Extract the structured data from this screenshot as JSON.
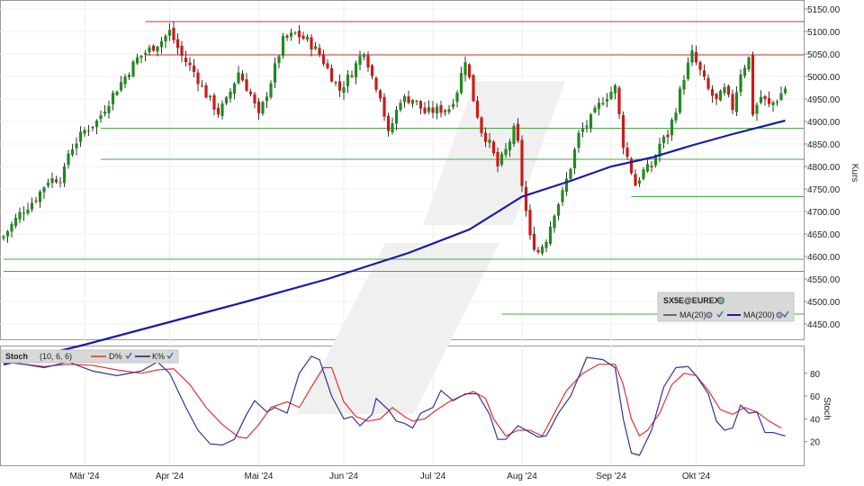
{
  "chart_data": [
    {
      "type": "candlestick",
      "instrument": "SX5E@EUREX",
      "y_unit_label": "Kurs",
      "ylim": [
        4420,
        5160
      ],
      "y_ticks": [
        "5150.00",
        "5100.00",
        "5050.00",
        "5000.00",
        "4950.00",
        "4900.00",
        "4850.00",
        "4800.00",
        "4750.00",
        "4700.00",
        "4650.00",
        "4600.00",
        "4550.00",
        "4500.00",
        "4450.00"
      ],
      "y_tick_values": [
        5150,
        5100,
        5050,
        5000,
        4950,
        4900,
        4850,
        4800,
        4750,
        4700,
        4650,
        4600,
        4550,
        4500,
        4450
      ],
      "x_ticks": [
        "Mär '24",
        "Apr '24",
        "Mai '24",
        "Jun '24",
        "Jul '24",
        "Aug '24",
        "Sep '24",
        "Okt '24"
      ],
      "x_tick_index": [
        20,
        41,
        63,
        84,
        106,
        128,
        150,
        171
      ],
      "legend": [
        {
          "label": "SX5E@EUREX",
          "type": "candle"
        },
        {
          "label": "MA(20)",
          "color": "#222222"
        },
        {
          "label": "MA(200)",
          "color": "#1a1aa8"
        }
      ],
      "horizontal_lines": [
        {
          "value": 5122,
          "color": "#cc3333",
          "from_index": 35
        },
        {
          "value": 5048,
          "color": "#cc3333",
          "from_index": 35
        },
        {
          "value": 4885,
          "color": "#44aa44",
          "from_index": 24
        },
        {
          "value": 4816,
          "color": "#44aa44",
          "from_index": 24
        },
        {
          "value": 4733,
          "color": "#44aa44",
          "from_index": 155
        },
        {
          "value": 4594,
          "color": "#44aa44",
          "from_index": 0
        },
        {
          "value": 4567,
          "color": "#44aa44",
          "from_index": 0
        },
        {
          "value": 4472,
          "color": "#44aa44",
          "from_index": 123
        }
      ],
      "ma200": [
        [
          0,
          4360
        ],
        [
          20,
          4404
        ],
        [
          40,
          4452
        ],
        [
          60,
          4500
        ],
        [
          80,
          4550
        ],
        [
          100,
          4608
        ],
        [
          115,
          4660
        ],
        [
          128,
          4733
        ],
        [
          140,
          4768
        ],
        [
          150,
          4800
        ],
        [
          160,
          4820
        ],
        [
          170,
          4847
        ],
        [
          180,
          4872
        ],
        [
          193,
          4902
        ]
      ],
      "close_path": [
        [
          0,
          4645
        ],
        [
          4,
          4695
        ],
        [
          8,
          4730
        ],
        [
          11,
          4770
        ],
        [
          14,
          4775
        ],
        [
          15,
          4790
        ],
        [
          16,
          4830
        ],
        [
          18,
          4856
        ],
        [
          20,
          4880
        ],
        [
          23,
          4900
        ],
        [
          25,
          4930
        ],
        [
          27,
          4960
        ],
        [
          30,
          5000
        ],
        [
          33,
          5040
        ],
        [
          36,
          5060
        ],
        [
          39,
          5080
        ],
        [
          41,
          5100
        ],
        [
          44,
          5045
        ],
        [
          47,
          5010
        ],
        [
          50,
          4960
        ],
        [
          53,
          4920
        ],
        [
          55,
          4945
        ],
        [
          58,
          5010
        ],
        [
          61,
          4960
        ],
        [
          63,
          4910
        ],
        [
          66,
          4990
        ],
        [
          69,
          5080
        ],
        [
          72,
          5095
        ],
        [
          75,
          5080
        ],
        [
          78,
          5050
        ],
        [
          81,
          5000
        ],
        [
          83,
          4970
        ],
        [
          86,
          5010
        ],
        [
          89,
          5060
        ],
        [
          91,
          5000
        ],
        [
          93,
          4960
        ],
        [
          95,
          4870
        ],
        [
          98,
          4950
        ],
        [
          101,
          4950
        ],
        [
          104,
          4920
        ],
        [
          107,
          4925
        ],
        [
          110,
          4930
        ],
        [
          112,
          4970
        ],
        [
          114,
          5040
        ],
        [
          116,
          4950
        ],
        [
          118,
          4880
        ],
        [
          120,
          4850
        ],
        [
          122,
          4800
        ],
        [
          124,
          4835
        ],
        [
          126,
          4880
        ],
        [
          127,
          4850
        ],
        [
          128,
          4760
        ],
        [
          130,
          4640
        ],
        [
          132,
          4610
        ],
        [
          134,
          4640
        ],
        [
          136,
          4700
        ],
        [
          138,
          4740
        ],
        [
          140,
          4800
        ],
        [
          142,
          4870
        ],
        [
          145,
          4905
        ],
        [
          148,
          4950
        ],
        [
          151,
          4975
        ],
        [
          153,
          4850
        ],
        [
          156,
          4760
        ],
        [
          158,
          4790
        ],
        [
          160,
          4800
        ],
        [
          162,
          4850
        ],
        [
          164,
          4870
        ],
        [
          166,
          4930
        ],
        [
          168,
          5000
        ],
        [
          170,
          5050
        ],
        [
          172,
          5010
        ],
        [
          174,
          4970
        ],
        [
          176,
          4945
        ],
        [
          178,
          4970
        ],
        [
          180,
          4930
        ],
        [
          182,
          5010
        ],
        [
          184,
          5040
        ],
        [
          185,
          4920
        ],
        [
          187,
          4955
        ],
        [
          189,
          4935
        ],
        [
          191,
          4950
        ],
        [
          193,
          4975
        ]
      ]
    },
    {
      "type": "line",
      "title": "Stoch",
      "params": "(10, 6, 6)",
      "y_unit_label": "Stoch",
      "ylim": [
        0,
        100
      ],
      "y_ticks": [
        "80",
        "60",
        "40",
        "20"
      ],
      "y_tick_values": [
        80,
        60,
        40,
        20
      ],
      "series": [
        {
          "name": "D%",
          "color": "#dd3333",
          "points": [
            [
              0,
              90
            ],
            [
              5,
              88
            ],
            [
              10,
              86
            ],
            [
              16,
              88
            ],
            [
              22,
              87
            ],
            [
              28,
              83
            ],
            [
              34,
              80
            ],
            [
              38,
              83
            ],
            [
              42,
              84
            ],
            [
              46,
              70
            ],
            [
              50,
              50
            ],
            [
              54,
              35
            ],
            [
              58,
              24
            ],
            [
              60,
              23
            ],
            [
              63,
              35
            ],
            [
              66,
              50
            ],
            [
              70,
              55
            ],
            [
              73,
              50
            ],
            [
              76,
              68
            ],
            [
              79,
              85
            ],
            [
              81,
              85
            ],
            [
              84,
              55
            ],
            [
              87,
              42
            ],
            [
              90,
              38
            ],
            [
              93,
              40
            ],
            [
              96,
              50
            ],
            [
              99,
              42
            ],
            [
              101,
              38
            ],
            [
              104,
              40
            ],
            [
              107,
              48
            ],
            [
              110,
              55
            ],
            [
              113,
              60
            ],
            [
              116,
              64
            ],
            [
              119,
              58
            ],
            [
              121,
              40
            ],
            [
              124,
              25
            ],
            [
              127,
              30
            ],
            [
              130,
              30
            ],
            [
              133,
              25
            ],
            [
              136,
              45
            ],
            [
              139,
              65
            ],
            [
              143,
              80
            ],
            [
              147,
              88
            ],
            [
              151,
              88
            ],
            [
              153,
              70
            ],
            [
              155,
              40
            ],
            [
              157,
              25
            ],
            [
              159,
              30
            ],
            [
              162,
              45
            ],
            [
              165,
              70
            ],
            [
              168,
              80
            ],
            [
              171,
              78
            ],
            [
              174,
              65
            ],
            [
              177,
              48
            ],
            [
              180,
              44
            ],
            [
              183,
              50
            ],
            [
              186,
              46
            ],
            [
              189,
              38
            ],
            [
              192,
              32
            ]
          ]
        },
        {
          "name": "K%",
          "color": "#333399",
          "points": [
            [
              0,
              90
            ],
            [
              5,
              88
            ],
            [
              10,
              85
            ],
            [
              16,
              90
            ],
            [
              22,
              82
            ],
            [
              28,
              78
            ],
            [
              34,
              82
            ],
            [
              38,
              90
            ],
            [
              41,
              80
            ],
            [
              45,
              50
            ],
            [
              48,
              30
            ],
            [
              51,
              18
            ],
            [
              54,
              17
            ],
            [
              57,
              22
            ],
            [
              60,
              44
            ],
            [
              62,
              56
            ],
            [
              65,
              46
            ],
            [
              67,
              50
            ],
            [
              70,
              45
            ],
            [
              73,
              80
            ],
            [
              76,
              95
            ],
            [
              78,
              92
            ],
            [
              81,
              60
            ],
            [
              84,
              40
            ],
            [
              86,
              42
            ],
            [
              88,
              34
            ],
            [
              91,
              44
            ],
            [
              92,
              58
            ],
            [
              95,
              48
            ],
            [
              97,
              38
            ],
            [
              99,
              36
            ],
            [
              101,
              32
            ],
            [
              103,
              45
            ],
            [
              106,
              50
            ],
            [
              108,
              65
            ],
            [
              111,
              56
            ],
            [
              114,
              62
            ],
            [
              117,
              62
            ],
            [
              120,
              44
            ],
            [
              122,
              22
            ],
            [
              124,
              22
            ],
            [
              127,
              34
            ],
            [
              130,
              28
            ],
            [
              132,
              24
            ],
            [
              134,
              25
            ],
            [
              137,
              45
            ],
            [
              140,
              60
            ],
            [
              144,
              94
            ],
            [
              148,
              92
            ],
            [
              151,
              85
            ],
            [
              153,
              40
            ],
            [
              155,
              10
            ],
            [
              157,
              8
            ],
            [
              160,
              30
            ],
            [
              163,
              68
            ],
            [
              166,
              85
            ],
            [
              169,
              86
            ],
            [
              171,
              78
            ],
            [
              174,
              62
            ],
            [
              176,
              38
            ],
            [
              178,
              30
            ],
            [
              180,
              32
            ],
            [
              182,
              52
            ],
            [
              184,
              45
            ],
            [
              186,
              46
            ],
            [
              188,
              28
            ],
            [
              190,
              28
            ],
            [
              193,
              25
            ]
          ]
        }
      ]
    }
  ]
}
